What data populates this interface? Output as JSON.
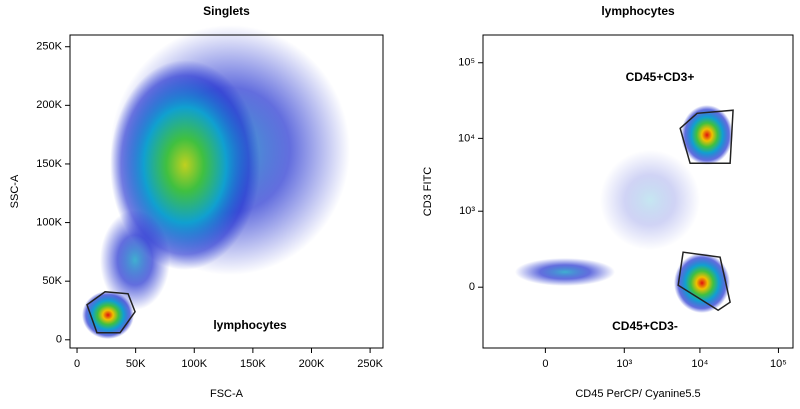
{
  "chart_data": [
    {
      "type": "scatter",
      "title": "Singlets",
      "x_label": "FSC-A",
      "y_label": "SSC-A",
      "scale": "linear",
      "xlim": [
        -6000,
        261000
      ],
      "ylim": [
        -7000,
        260000
      ],
      "xticks": [
        0,
        {
          "value": 50000,
          "label": "50K"
        },
        {
          "value": 100000,
          "label": "100K"
        },
        {
          "value": 150000,
          "label": "150K"
        },
        {
          "value": 200000,
          "label": "200K"
        },
        {
          "value": 250000,
          "label": "250K"
        }
      ],
      "yticks": [
        0,
        {
          "value": 50000,
          "label": "50K"
        },
        {
          "value": 100000,
          "label": "100K"
        },
        {
          "value": 150000,
          "label": "150K"
        },
        {
          "value": 200000,
          "label": "200K"
        },
        {
          "value": 250000,
          "label": "250K"
        }
      ],
      "gates": [
        {
          "name": "lymphocytes",
          "x": [
            8500,
            23900,
            43500,
            49500,
            36700,
            17000
          ],
          "y": [
            29900,
            41000,
            39300,
            23900,
            6000,
            6000
          ]
        }
      ]
    },
    {
      "type": "scatter",
      "title": "lymphocytes",
      "x_label": "CD45 PerCP/ Cyanine5.5",
      "y_label": "CD3 FITC",
      "scale": "logicle",
      "xlim": [
        -575,
        153000
      ],
      "ylim": [
        -590,
        232000
      ],
      "xticks": [
        0,
        {
          "value": 1000,
          "label": "10³"
        },
        {
          "value": 10000,
          "label": "10⁴"
        },
        {
          "value": 100000,
          "label": "10⁵"
        }
      ],
      "yticks": [
        0,
        {
          "value": 1000,
          "label": "10³"
        },
        {
          "value": 10000,
          "label": "10⁴"
        },
        {
          "value": 100000,
          "label": "10⁵"
        }
      ],
      "gates": [
        {
          "name": "CD45+CD3+",
          "x": [
            5570,
            9200,
            26500,
            24300,
            7480
          ],
          "y": [
            13600,
            21500,
            23600,
            4640,
            4640
          ]
        },
        {
          "name": "CD45+CD3-",
          "x": [
            5250,
            6080,
            18100,
            24300,
            17100
          ],
          "y": [
            6.9,
            210,
            165,
            -64,
            -112
          ]
        }
      ]
    }
  ]
}
